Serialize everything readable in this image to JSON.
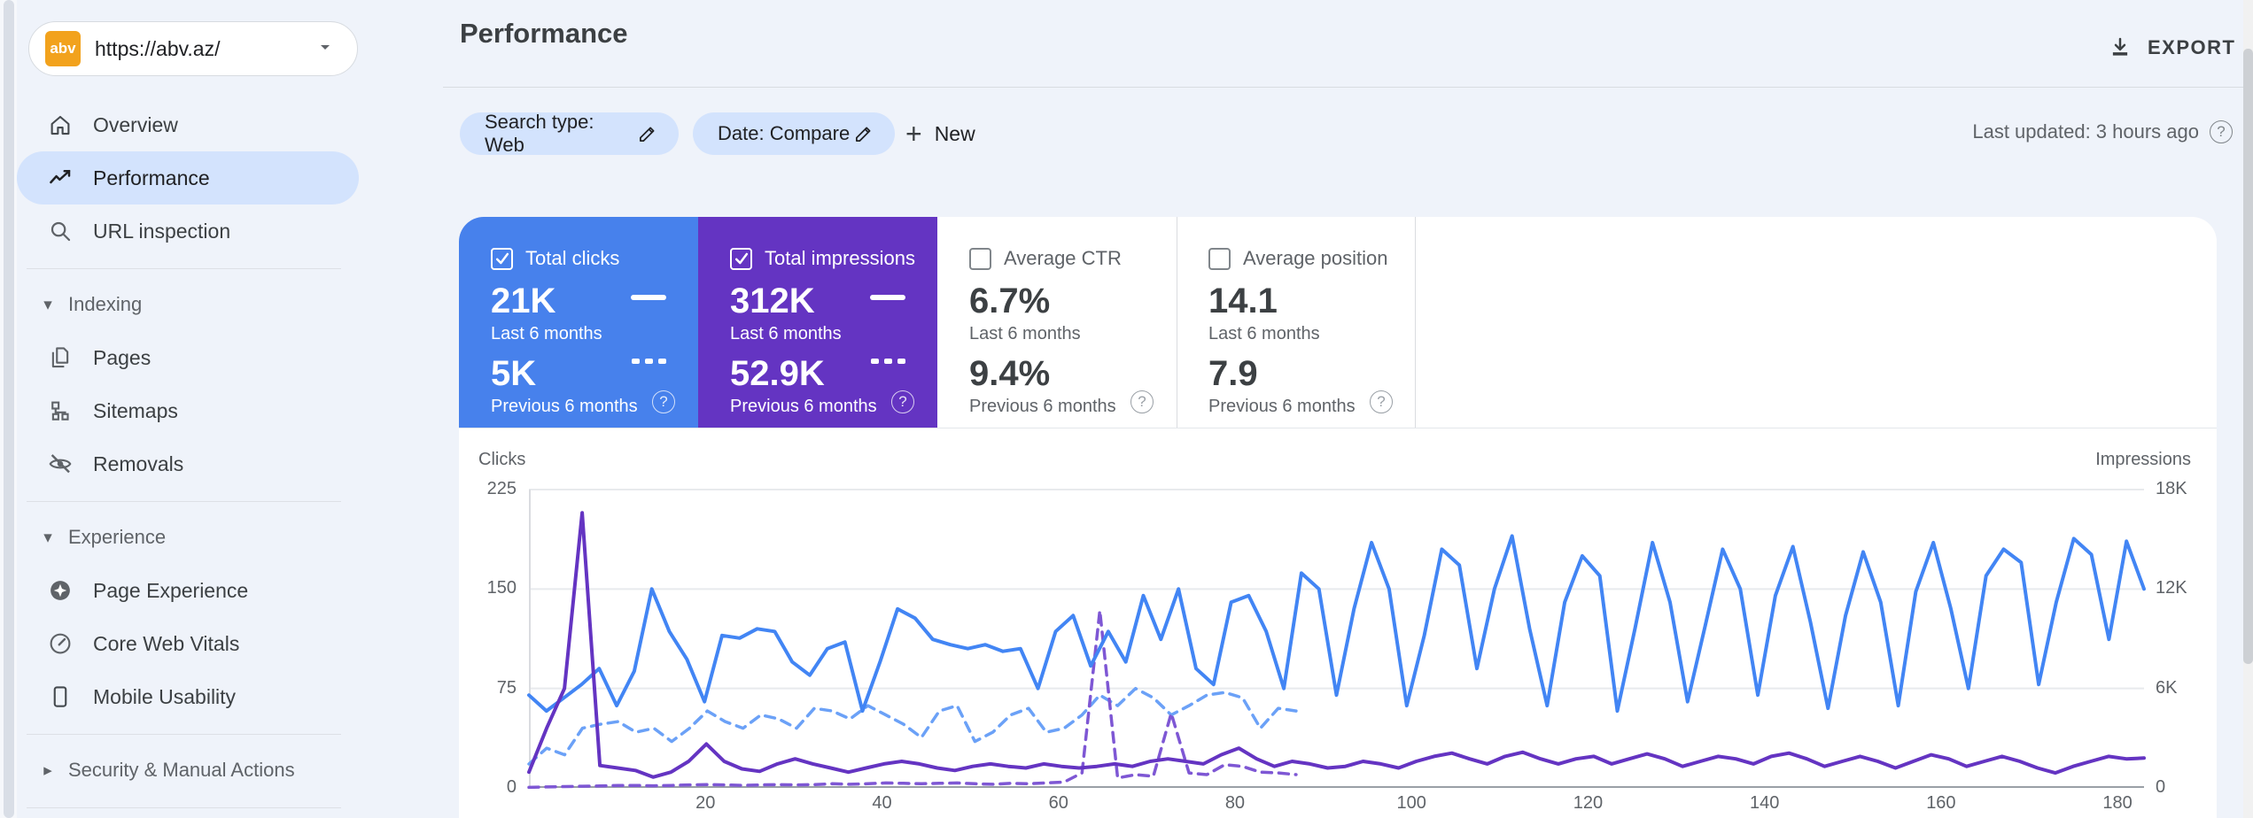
{
  "app": {
    "background": "#eff3fa",
    "surface": "#ffffff",
    "selected_pill": "#d3e3fd",
    "divider": "#dadce0"
  },
  "property_selector": {
    "favicon": "abv",
    "favicon_color": "#f2a21d",
    "url": "https://abv.az/"
  },
  "sidebar": {
    "primary": [
      {
        "label": "Overview",
        "icon": "home",
        "selected": false
      },
      {
        "label": "Performance",
        "icon": "trending-line",
        "selected": true
      },
      {
        "label": "URL inspection",
        "icon": "magnifier",
        "selected": false
      }
    ],
    "indexing": {
      "label": "Indexing",
      "expanded": true,
      "items": [
        {
          "label": "Pages",
          "icon": "pages"
        },
        {
          "label": "Sitemaps",
          "icon": "sitemap"
        },
        {
          "label": "Removals",
          "icon": "eye-off"
        }
      ]
    },
    "experience": {
      "label": "Experience",
      "expanded": true,
      "items": [
        {
          "label": "Page Experience",
          "icon": "page-experience"
        },
        {
          "label": "Core Web Vitals",
          "icon": "gauge"
        },
        {
          "label": "Mobile Usability",
          "icon": "smartphone"
        }
      ]
    },
    "security": {
      "label": "Security & Manual Actions",
      "expanded": false
    }
  },
  "header": {
    "title": "Performance",
    "export": "EXPORT",
    "last_updated": "Last updated: 3 hours ago"
  },
  "filters": {
    "search_type_chip": "Search type: Web",
    "date_chip": "Date: Compare",
    "new_button": "New"
  },
  "cards": [
    {
      "label": "Total clicks",
      "checked": true,
      "background": "#4781ec",
      "current": {
        "value": "21K",
        "period": "Last 6 months"
      },
      "previous": {
        "value": "5K",
        "period": "Previous 6 months"
      }
    },
    {
      "label": "Total impressions",
      "checked": true,
      "background": "#6434c2",
      "current": {
        "value": "312K",
        "period": "Last 6 months"
      },
      "previous": {
        "value": "52.9K",
        "period": "Previous 6 months"
      }
    },
    {
      "label": "Average CTR",
      "checked": false,
      "background": "#ffffff",
      "current": {
        "value": "6.7%",
        "period": "Last 6 months"
      },
      "previous": {
        "value": "9.4%",
        "period": "Previous 6 months"
      }
    },
    {
      "label": "Average position",
      "checked": false,
      "background": "#ffffff",
      "current": {
        "value": "14.1",
        "period": "Last 6 months"
      },
      "previous": {
        "value": "7.9",
        "period": "Previous 6 months"
      }
    }
  ],
  "chart_data": {
    "type": "line",
    "x": {
      "unit": "days",
      "max": 183,
      "ticks": [
        20,
        40,
        60,
        80,
        100,
        120,
        140,
        160,
        180
      ]
    },
    "left_axis": {
      "label": "Clicks",
      "max": 225,
      "ticks": [
        0,
        75,
        150,
        225
      ]
    },
    "right_axis": {
      "label": "Impressions",
      "max": 18000,
      "ticks": [
        "0",
        "6K",
        "12K",
        "18K"
      ],
      "tick_values": [
        0,
        6000,
        12000,
        18000
      ]
    },
    "grid_color": "#e8eaed",
    "series": [
      {
        "name": "Total clicks — Last 6 months",
        "axis": "left",
        "style": "dashed_none_placeholder_ignore",
        "values": []
      },
      {
        "name": "Total clicks — Previous 6 months",
        "axis": "left",
        "style": "dashed",
        "color": "#6ba1f7",
        "x_fraction": 0.475,
        "values": [
          18,
          30,
          25,
          45,
          48,
          50,
          42,
          45,
          35,
          45,
          58,
          50,
          45,
          55,
          52,
          45,
          60,
          58,
          52,
          62,
          55,
          48,
          38,
          58,
          62,
          35,
          42,
          55,
          60,
          42,
          45,
          55,
          70,
          62,
          75,
          68,
          55,
          62,
          70,
          72,
          68,
          45,
          60,
          58
        ]
      },
      {
        "name": "Total impressions — Previous 6 months",
        "axis": "right",
        "style": "dashed",
        "color": "#7e57d4",
        "x_fraction": 0.475,
        "values": [
          30,
          60,
          80,
          100,
          120,
          150,
          150,
          130,
          150,
          180,
          200,
          180,
          150,
          180,
          200,
          180,
          200,
          250,
          220,
          250,
          300,
          280,
          250,
          280,
          300,
          250,
          220,
          280,
          250,
          300,
          350,
          900,
          10700,
          600,
          800,
          700,
          4500,
          900,
          800,
          1400,
          1300,
          950,
          900,
          800
        ]
      },
      {
        "name": "Total clicks — Last 6 months",
        "axis": "left",
        "style": "solid",
        "color": "#4285f4",
        "x_fraction": 1.0,
        "values": [
          70,
          58,
          68,
          78,
          90,
          62,
          88,
          150,
          118,
          97,
          65,
          115,
          113,
          120,
          118,
          95,
          85,
          105,
          110,
          58,
          95,
          135,
          128,
          112,
          108,
          105,
          108,
          103,
          105,
          75,
          118,
          130,
          92,
          118,
          95,
          145,
          112,
          150,
          90,
          78,
          140,
          145,
          118,
          75,
          162,
          150,
          70,
          135,
          185,
          150,
          62,
          115,
          180,
          168,
          90,
          150,
          190,
          120,
          62,
          140,
          175,
          160,
          58,
          120,
          185,
          140,
          65,
          122,
          180,
          150,
          70,
          145,
          182,
          125,
          60,
          130,
          178,
          140,
          62,
          148,
          185,
          135,
          75,
          160,
          180,
          170,
          78,
          140,
          188,
          176,
          112,
          186,
          150
        ]
      },
      {
        "name": "Total impressions — Last 6 months",
        "axis": "right",
        "style": "solid",
        "color": "#6434c2",
        "x_fraction": 1.0,
        "values": [
          950,
          3600,
          6000,
          16600,
          1350,
          1200,
          1050,
          650,
          950,
          1600,
          2650,
          1600,
          1150,
          1000,
          1450,
          1750,
          1450,
          1200,
          950,
          1200,
          1450,
          1600,
          1450,
          1200,
          1050,
          1300,
          1450,
          1300,
          1200,
          1450,
          1300,
          1200,
          1300,
          1450,
          1300,
          1600,
          1750,
          1600,
          1450,
          2000,
          2400,
          1750,
          1300,
          1600,
          1450,
          1200,
          1300,
          1600,
          1450,
          1200,
          1600,
          1900,
          2100,
          1750,
          1450,
          1900,
          2150,
          1750,
          1450,
          1750,
          1900,
          1450,
          1750,
          2050,
          1750,
          1300,
          1600,
          1900,
          1750,
          1450,
          1900,
          2100,
          1750,
          1300,
          1600,
          1900,
          1600,
          1200,
          1600,
          2000,
          1750,
          1300,
          1600,
          1900,
          1600,
          1200,
          900,
          1300,
          1600,
          1900,
          1750,
          1800
        ]
      }
    ]
  }
}
